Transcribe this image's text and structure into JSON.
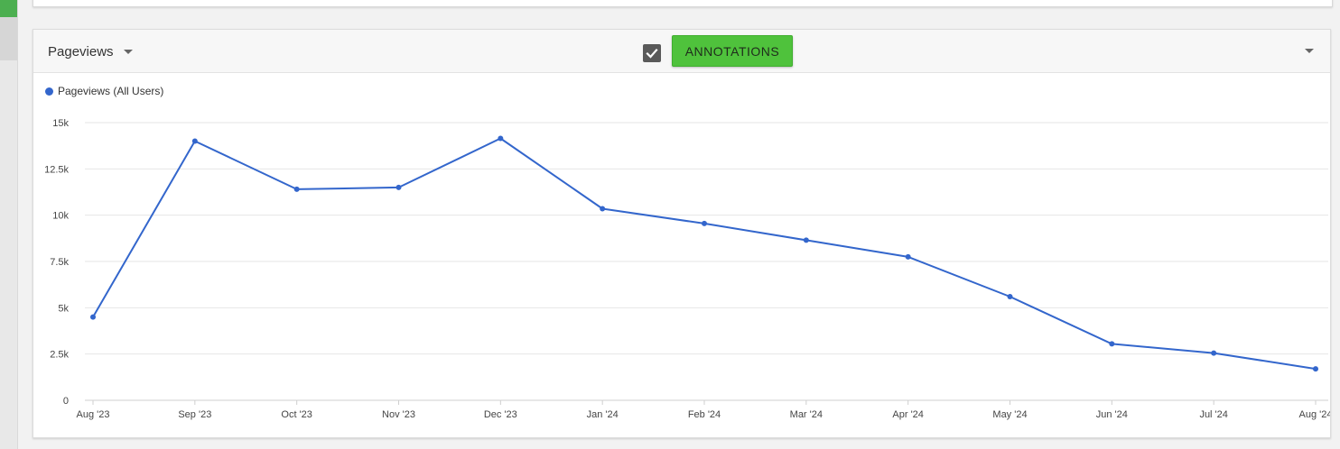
{
  "panel": {
    "metric_label": "Pageviews",
    "annotations_checked": true,
    "annotations_button": "ANNOTATIONS"
  },
  "legend": {
    "label": "Pageviews (All Users)"
  },
  "colors": {
    "series": "#3366cc",
    "button": "#4fc23c",
    "accent": "#4caf50"
  },
  "chart_data": {
    "type": "line",
    "title": "",
    "xlabel": "",
    "ylabel": "",
    "ylim": [
      0,
      15000
    ],
    "yticks": [
      0,
      2500,
      5000,
      7500,
      10000,
      12500,
      15000
    ],
    "ytick_labels": [
      "0",
      "2.5k",
      "5k",
      "7.5k",
      "10k",
      "12.5k",
      "15k"
    ],
    "categories": [
      "Aug '23",
      "Sep '23",
      "Oct '23",
      "Nov '23",
      "Dec '23",
      "Jan '24",
      "Feb '24",
      "Mar '24",
      "Apr '24",
      "May '24",
      "Jun '24",
      "Jul '24",
      "Aug '24"
    ],
    "grid": true,
    "legend_position": "top-left",
    "series": [
      {
        "name": "Pageviews (All Users)",
        "values": [
          4500,
          14000,
          11400,
          11500,
          14150,
          10350,
          9550,
          8650,
          7750,
          5600,
          3050,
          2550,
          1700
        ]
      }
    ]
  }
}
